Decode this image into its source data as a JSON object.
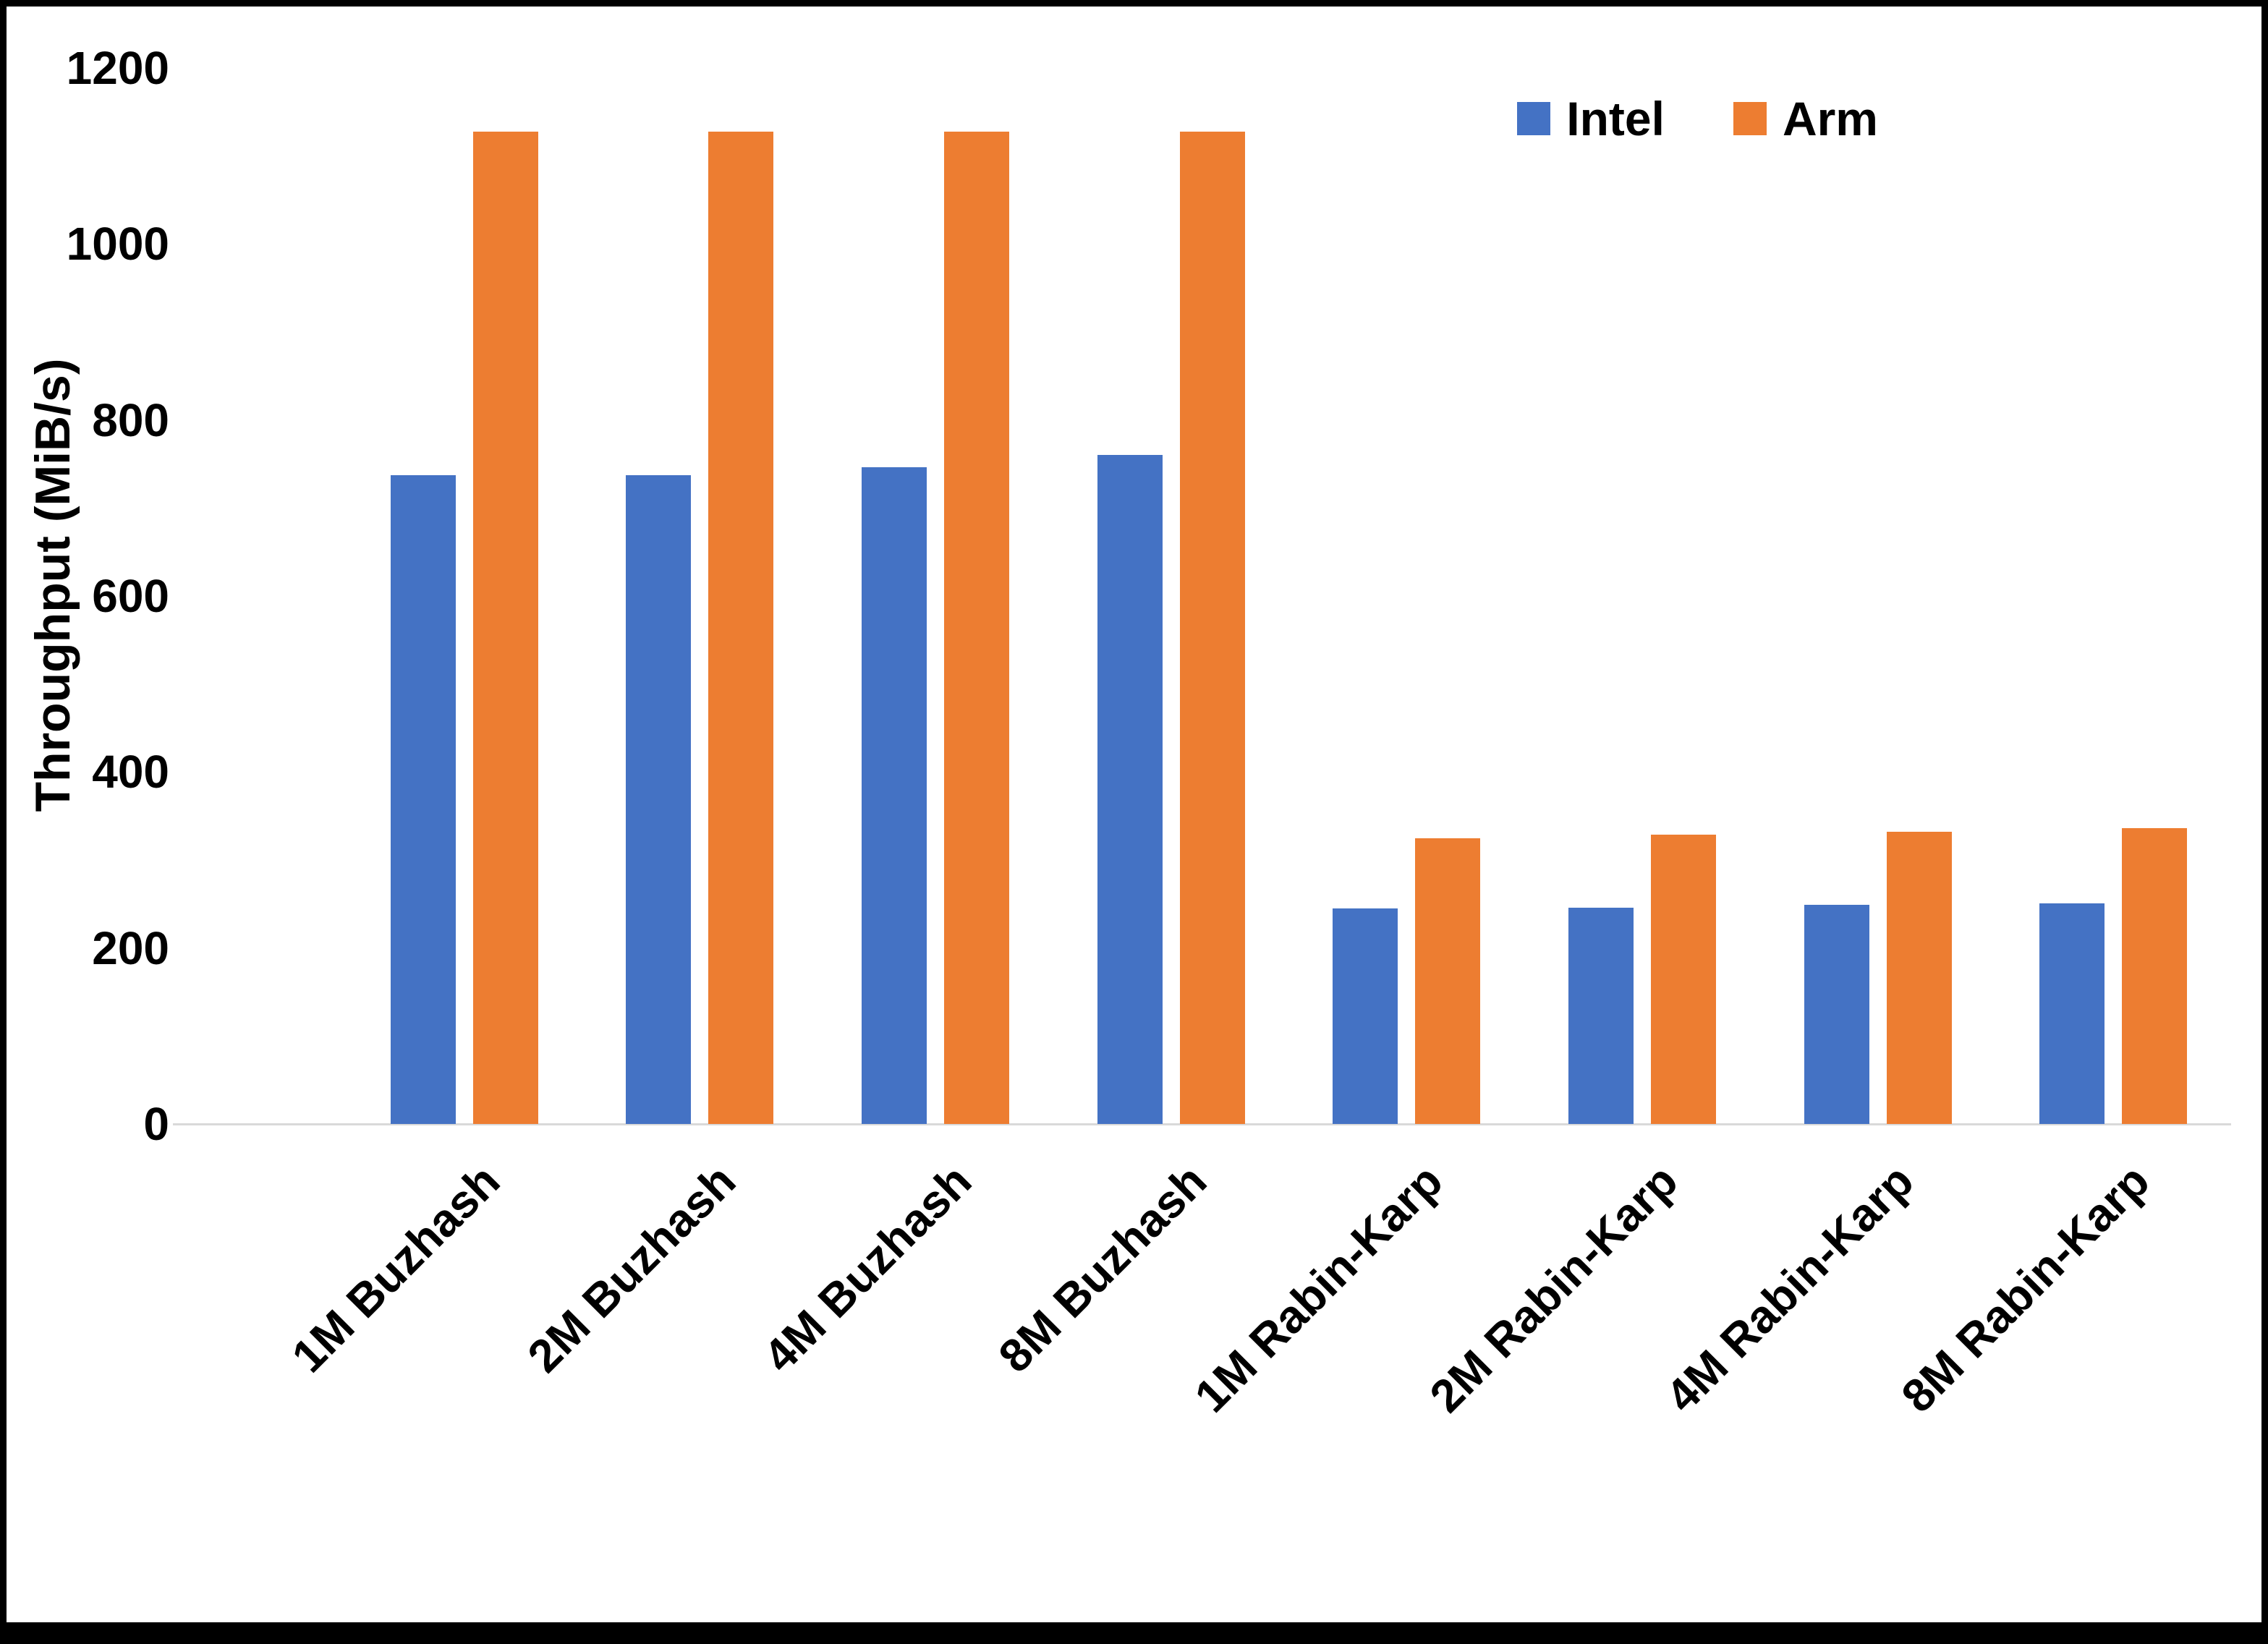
{
  "chart_data": {
    "type": "bar",
    "categories": [
      "1M Buzhash",
      "2M Buzhash",
      "4M Buzhash",
      "8M Buzhash",
      "1M Rabin-Karp",
      "2M Rabin-Karp",
      "4M Rabin-Karp",
      "8M Rabin-Karp"
    ],
    "series": [
      {
        "name": "Intel",
        "color": "#4472C4",
        "values": [
          737,
          737,
          746,
          760,
          245,
          246,
          249,
          251
        ]
      },
      {
        "name": "Arm",
        "color": "#ED7D31",
        "values": [
          1128,
          1128,
          1128,
          1128,
          325,
          329,
          332,
          336
        ]
      }
    ],
    "title": "",
    "xlabel": "",
    "ylabel": "Throughput (MiB/s)",
    "ylim": [
      0,
      1200
    ],
    "ytick_step": 200,
    "grid": false,
    "legend_position": "top-right",
    "axis_line_color": "#d9d9d9"
  }
}
